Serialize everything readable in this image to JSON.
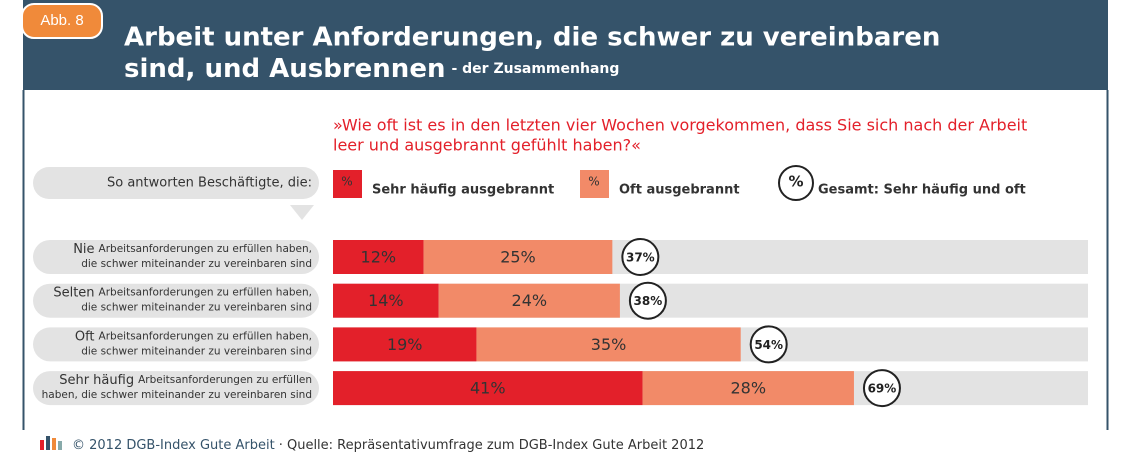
{
  "chart_data": {
    "type": "bar",
    "orientation": "horizontal",
    "stacked": true,
    "badge": "Abb. 8",
    "title_lines": [
      "Arbeit unter Anforderungen, die schwer zu vereinbaren",
      "sind, und Ausbrennen"
    ],
    "subtitle": "- der Zusammenhang",
    "question_lines": [
      "»Wie oft ist es in den letzten vier Wochen vorgekommen, dass Sie sich nach der Arbeit",
      "leer und ausgebrannt gefühlt haben?«"
    ],
    "group_label": "So antworten Beschäftigte, die:",
    "legend_symbol": "%",
    "categories": [
      "Nie",
      "Selten",
      "Oft",
      "Sehr häufig"
    ],
    "category_notes": [
      [
        "Arbeitsanforderungen zu erfüllen haben,",
        "die schwer miteinander zu vereinbaren sind"
      ],
      [
        "Arbeitsanforderungen zu erfüllen haben,",
        "die schwer miteinander zu vereinbaren sind"
      ],
      [
        "Arbeitsanforderungen zu erfüllen haben,",
        "die schwer miteinander zu vereinbaren sind"
      ],
      [
        "Arbeitsanforderungen zu erfüllen",
        "haben, die schwer miteinander zu vereinbaren sind"
      ]
    ],
    "series": [
      {
        "name": "Sehr häufig ausgebrannt",
        "color": "#e3202a",
        "values": [
          12,
          14,
          19,
          41
        ],
        "value_labels": [
          "12%",
          "14%",
          "19%",
          "41%"
        ]
      },
      {
        "name": "Oft ausgebrannt",
        "color": "#f28a68",
        "values": [
          25,
          24,
          35,
          28
        ],
        "value_labels": [
          "25%",
          "24%",
          "35%",
          "28%"
        ]
      }
    ],
    "total": {
      "name": "Gesamt: Sehr häufig und oft",
      "values": [
        37,
        38,
        54,
        69
      ],
      "value_labels": [
        "37%",
        "38%",
        "54%",
        "69%"
      ]
    },
    "xlim": [
      0,
      100
    ],
    "footer": {
      "credit": "© 2012 DGB-Index Gute Arbeit",
      "source": "· Quelle: Repräsentativumfrage zum DGB-Index Gute Arbeit 2012"
    }
  }
}
